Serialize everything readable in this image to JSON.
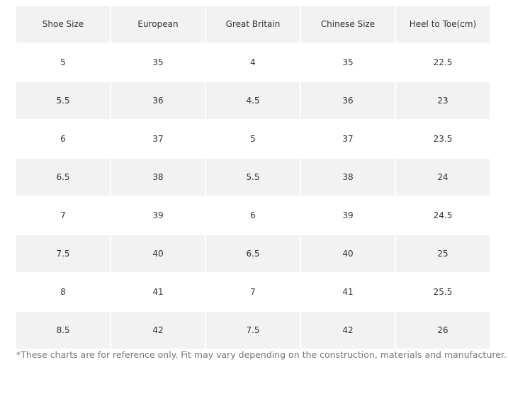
{
  "table": {
    "header": [
      "Shoe Size",
      "European",
      "Great Britain",
      "Chinese Size",
      "Heel to Toe(cm)"
    ],
    "rows": [
      [
        5,
        35,
        4,
        35,
        22.5
      ],
      [
        5.5,
        36,
        4.5,
        36,
        23
      ],
      [
        6,
        37,
        5,
        37,
        23.5
      ],
      [
        6.5,
        38,
        5.5,
        38,
        24
      ],
      [
        7,
        39,
        6,
        39,
        24.5
      ],
      [
        7.5,
        40,
        6.5,
        40,
        25
      ],
      [
        8,
        41,
        7,
        41,
        25.5
      ],
      [
        8.5,
        42,
        7.5,
        42,
        26
      ]
    ]
  },
  "footnote": "*These charts are for reference only. Fit may vary depending on the construction, materials and manufacturer."
}
